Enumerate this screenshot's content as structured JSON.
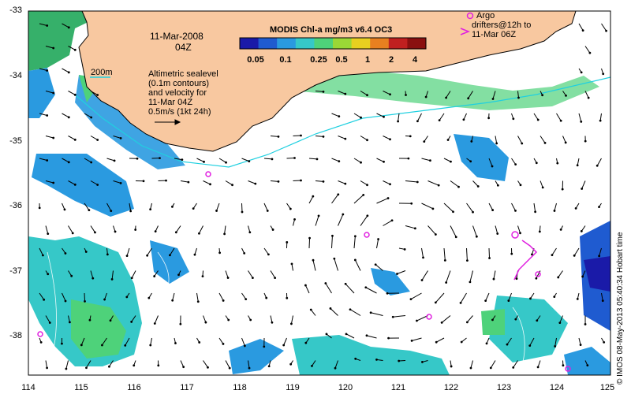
{
  "date_label": "11-Mar-2008",
  "time_label": "04Z",
  "colorbar": {
    "title": "MODIS Chl-a mg/m3 v6.4 OC3",
    "ticks": [
      "0.05",
      "0.1",
      "0.25",
      "0.5",
      "1",
      "2",
      "4"
    ],
    "colors": [
      "#1a1aa8",
      "#1f5bd0",
      "#2a9ae0",
      "#36c8c8",
      "#4ed27a",
      "#9ad836",
      "#e8d020",
      "#e88020",
      "#c02020",
      "#8a1010"
    ]
  },
  "contour_label": "200m",
  "legend_text": {
    "line1": "Altimetric sealevel",
    "line2": "(0.1m contours)",
    "line3": "and velocity for",
    "line4": "11-Mar 04Z",
    "line5": "0.5m/s (1kt 24h)"
  },
  "argo_legend": {
    "line1": "Argo",
    "line2": "drifters@12h to",
    "line3": "11-Mar 06Z"
  },
  "credit": "© IMOS 08-May-2013 05:40:34 Hobart time",
  "axes": {
    "x_ticks": [
      "114",
      "115",
      "116",
      "117",
      "118",
      "119",
      "120",
      "121",
      "122",
      "123",
      "124",
      "125"
    ],
    "y_ticks": [
      "-33",
      "-34",
      "-35",
      "-36",
      "-37",
      "-38"
    ],
    "lon_range": [
      114,
      125
    ],
    "lat_range": [
      -38.6,
      -33
    ]
  },
  "colors": {
    "land": "#f8c8a0",
    "coastline": "#000000",
    "isobath": "#20d0e0",
    "argo_marker": "#e020e0",
    "arrow": "#000000"
  }
}
